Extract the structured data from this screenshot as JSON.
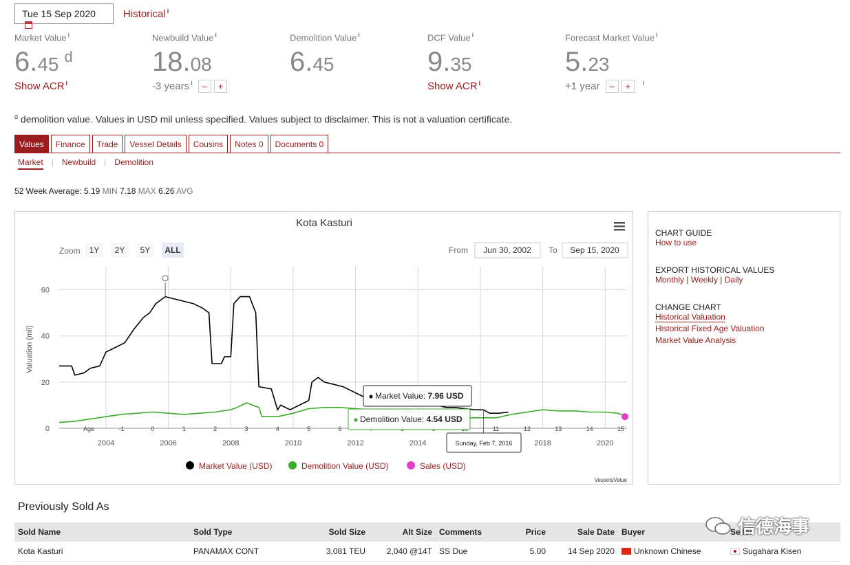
{
  "header": {
    "date": "Tue 15 Sep 2020",
    "historical_label": "Historical",
    "info_mark": "i"
  },
  "metrics": [
    {
      "label": "Market Value",
      "int": "6.",
      "dec": "45",
      "suffix": "d",
      "sub": "Show ACR"
    },
    {
      "label": "Newbuild Value",
      "int": "18.",
      "dec": "08",
      "sub": "-3 years"
    },
    {
      "label": "Demolition Value",
      "int": "6.",
      "dec": "45"
    },
    {
      "label": "DCF Value",
      "int": "9.",
      "dec": "35",
      "sub": "Show ACR"
    },
    {
      "label": "Forecast Market Value",
      "int": "5.",
      "dec": "23",
      "sub": "+1 year"
    }
  ],
  "stepper": {
    "minus": "–",
    "plus": "+"
  },
  "disclaimer": {
    "sup": "d",
    "text": " demolition value. Values in USD mil unless specified. Values subject to disclaimer. This is not a valuation certificate."
  },
  "tabs": [
    "Values",
    "Finance",
    "Trade",
    "Vessel Details",
    "Cousins",
    "Notes 0",
    "Documents 0"
  ],
  "subtabs": [
    "Market",
    "Newbuild",
    "Demolition"
  ],
  "stats": {
    "prefix": "52 Week Average:",
    "min_val": "5.19",
    "min": "MIN",
    "max_val": "7.18",
    "max": "MAX",
    "avg_val": "6.26",
    "avg": "AVG"
  },
  "chart_ui": {
    "zoom_label": "Zoom",
    "zoom_buttons": [
      "1Y",
      "2Y",
      "5Y",
      "ALL"
    ],
    "from_label": "From",
    "from_value": "Jun 30, 2002",
    "to_label": "To",
    "to_value": "Sep 15, 2020",
    "tooltip_market": "Market Value:",
    "tooltip_market_val": "7.96 USD",
    "tooltip_demo": "Demolition Value:",
    "tooltip_demo_val": "4.54 USD",
    "tooltip_date": "Sunday, Feb 7, 2016",
    "credit": "VesselsValue",
    "age_label": "Age",
    "menu_icon": "hamburger-menu-icon"
  },
  "chart_data": {
    "type": "line",
    "title": "Kota Kasturi",
    "ylabel": "Valuation (mil)",
    "ylim": [
      0,
      70
    ],
    "xlim": [
      2002.5,
      2020.7
    ],
    "yticks": [
      0,
      20,
      40,
      60
    ],
    "xticks": [
      2004,
      2006,
      2008,
      2010,
      2012,
      2014,
      2016,
      2018,
      2020
    ],
    "age_ticks": [
      -1,
      0,
      1,
      2,
      3,
      4,
      5,
      6,
      7,
      8,
      9,
      10,
      11,
      12,
      13,
      14,
      15
    ],
    "age_zero_year": 2005.5,
    "legend_placement": "bottom",
    "series": [
      {
        "name": "Market Value (USD)",
        "color": "#000000",
        "points": [
          [
            2002.5,
            27
          ],
          [
            2002.9,
            27
          ],
          [
            2003.0,
            23
          ],
          [
            2003.3,
            24
          ],
          [
            2003.5,
            26
          ],
          [
            2003.8,
            27
          ],
          [
            2004.0,
            33
          ],
          [
            2004.3,
            35
          ],
          [
            2004.6,
            37
          ],
          [
            2004.9,
            43
          ],
          [
            2005.2,
            48
          ],
          [
            2005.4,
            50
          ],
          [
            2005.6,
            54
          ],
          [
            2005.9,
            57
          ],
          [
            2006.2,
            56
          ],
          [
            2006.5,
            55
          ],
          [
            2006.8,
            54
          ],
          [
            2007.1,
            52
          ],
          [
            2007.3,
            50
          ],
          [
            2007.4,
            28
          ],
          [
            2007.7,
            28
          ],
          [
            2007.8,
            31
          ],
          [
            2008.0,
            31
          ],
          [
            2008.1,
            54
          ],
          [
            2008.3,
            57
          ],
          [
            2008.6,
            57
          ],
          [
            2008.8,
            50
          ],
          [
            2008.9,
            18
          ],
          [
            2009.3,
            17
          ],
          [
            2009.5,
            8
          ],
          [
            2009.6,
            10
          ],
          [
            2009.9,
            8
          ],
          [
            2010.2,
            10
          ],
          [
            2010.5,
            12
          ],
          [
            2010.6,
            20
          ],
          [
            2010.8,
            22
          ],
          [
            2011.0,
            20
          ],
          [
            2011.3,
            19
          ],
          [
            2011.6,
            18
          ],
          [
            2011.9,
            16
          ],
          [
            2012.2,
            14
          ],
          [
            2012.5,
            12
          ],
          [
            2012.8,
            13
          ],
          [
            2013.1,
            14
          ],
          [
            2013.4,
            14
          ],
          [
            2013.7,
            12
          ],
          [
            2014.0,
            11
          ],
          [
            2014.3,
            10
          ],
          [
            2014.6,
            10
          ],
          [
            2014.9,
            9
          ],
          [
            2015.2,
            9
          ],
          [
            2015.5,
            8.5
          ],
          [
            2015.8,
            8
          ],
          [
            2016.1,
            7.96
          ],
          [
            2016.3,
            6.5
          ],
          [
            2016.6,
            6.5
          ],
          [
            2016.9,
            7
          ]
        ]
      },
      {
        "name": "Demolition Value (USD)",
        "color": "#3aaa2a",
        "points": [
          [
            2002.5,
            2.5
          ],
          [
            2003.0,
            3
          ],
          [
            2003.5,
            4
          ],
          [
            2004.0,
            5
          ],
          [
            2004.5,
            6
          ],
          [
            2005.0,
            6.5
          ],
          [
            2005.5,
            7
          ],
          [
            2006.0,
            6.5
          ],
          [
            2006.5,
            6
          ],
          [
            2007.0,
            6.5
          ],
          [
            2007.5,
            7
          ],
          [
            2008.0,
            8
          ],
          [
            2008.2,
            9
          ],
          [
            2008.5,
            11
          ],
          [
            2008.9,
            9
          ],
          [
            2009.0,
            5
          ],
          [
            2009.5,
            5
          ],
          [
            2010.0,
            6.5
          ],
          [
            2010.5,
            8.5
          ],
          [
            2011.0,
            9
          ],
          [
            2011.5,
            9
          ],
          [
            2012.0,
            8.5
          ],
          [
            2012.5,
            8
          ],
          [
            2013.0,
            8
          ],
          [
            2013.5,
            7.5
          ],
          [
            2014.0,
            7
          ],
          [
            2014.5,
            6
          ],
          [
            2015.0,
            5
          ],
          [
            2015.5,
            4.5
          ],
          [
            2016.1,
            4.54
          ],
          [
            2016.5,
            4.5
          ],
          [
            2017.0,
            6
          ],
          [
            2017.5,
            7
          ],
          [
            2018.0,
            8
          ],
          [
            2018.5,
            7.5
          ],
          [
            2019.0,
            7.5
          ],
          [
            2019.5,
            7
          ],
          [
            2020.0,
            7
          ],
          [
            2020.4,
            6.5
          ],
          [
            2020.7,
            5
          ]
        ]
      },
      {
        "name": "Sales (USD)",
        "color": "#e040c8",
        "points": [
          [
            2020.7,
            5
          ]
        ]
      }
    ]
  },
  "side_panel": {
    "chart_guide": "CHART GUIDE",
    "how_to_use": "How to use",
    "export": "EXPORT HISTORICAL VALUES",
    "monthly": "Monthly",
    "weekly": "Weekly",
    "daily": "Daily",
    "change_chart": "CHANGE CHART",
    "opt1": "Historical Valuation",
    "opt2": "Historical Fixed Age Valuation",
    "opt3": "Market Value Analysis"
  },
  "sold": {
    "title": "Previously Sold As",
    "headers": [
      "Sold Name",
      "Sold Type",
      "Sold Size",
      "Alt Size",
      "Comments",
      "Price",
      "Sale Date",
      "Buyer",
      "Seller"
    ],
    "row": [
      "Kota Kasturi",
      "PANAMAX CONT",
      "3,081 TEU",
      "2,040 @14T",
      "SS Due",
      "5.00",
      "14 Sep 2020",
      "Unknown Chinese",
      "Sugahara Kisen"
    ]
  },
  "watermark": "信德海事"
}
